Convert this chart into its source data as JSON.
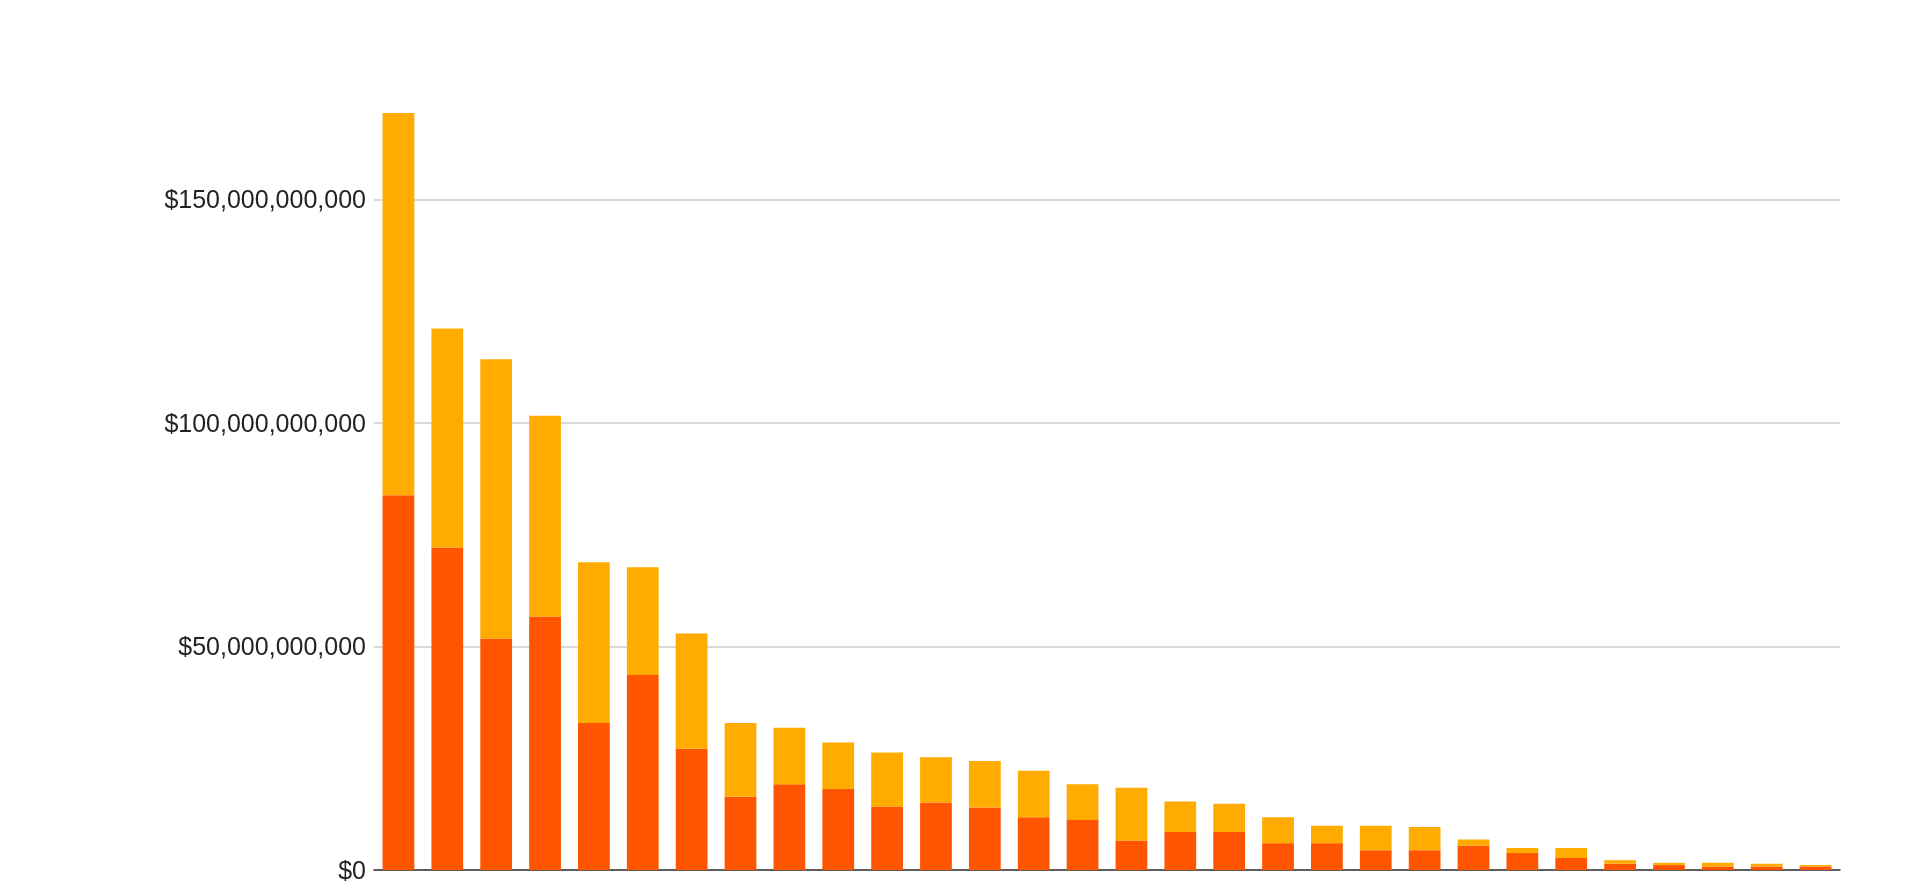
{
  "chart_data": {
    "type": "bar",
    "stacked": true,
    "categories": [
      null,
      null,
      null,
      null,
      null,
      null,
      null,
      null,
      null,
      null,
      null,
      null,
      null,
      null,
      null,
      null,
      null,
      null,
      null,
      null,
      null,
      null,
      null,
      null,
      null,
      null,
      null,
      null,
      null,
      null
    ],
    "series": [
      {
        "color": "#ff5500",
        "values": [
          83800000000,
          72100000000,
          51800000000,
          56700000000,
          32900000000,
          43600000000,
          27100000000,
          16400000000,
          19200000000,
          18100000000,
          14200000000,
          15100000000,
          14000000000,
          11800000000,
          11200000000,
          6600000000,
          8500000000,
          8500000000,
          6000000000,
          6000000000,
          4400000000,
          4400000000,
          5500000000,
          3800000000,
          2700000000,
          1400000000,
          1100000000,
          800000000,
          800000000,
          800000000
        ]
      },
      {
        "color": "#ffab00",
        "values": [
          85500000000,
          49000000000,
          62400000000,
          44900000000,
          35900000000,
          24100000000,
          25800000000,
          16500000000,
          12600000000,
          10400000000,
          12100000000,
          10100000000,
          10400000000,
          10400000000,
          8000000000,
          11800000000,
          6800000000,
          6300000000,
          5800000000,
          3900000000,
          5500000000,
          5200000000,
          1300000000,
          1100000000,
          2200000000,
          800000000,
          500000000,
          800000000,
          600000000,
          300000000
        ]
      }
    ],
    "yticks": [
      {
        "value": 0,
        "label": "$0"
      },
      {
        "value": 50000000000,
        "label": "$50,000,000,000"
      },
      {
        "value": 100000000000,
        "label": "$100,000,000,000"
      },
      {
        "value": 150000000000,
        "label": "$150,000,000,000"
      }
    ],
    "ylim": [
      0,
      169300000000
    ],
    "grid": "y"
  }
}
